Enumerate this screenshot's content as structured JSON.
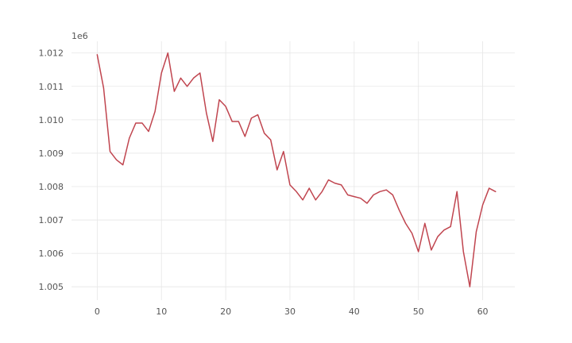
{
  "chart_data": {
    "type": "line",
    "title": "",
    "xlabel": "",
    "ylabel": "",
    "y_offset_label": "1e6",
    "grid": true,
    "xlim": [
      -4,
      65
    ],
    "ylim": [
      1004.6,
      1012.35
    ],
    "x_ticks": [
      0,
      10,
      20,
      30,
      40,
      50,
      60
    ],
    "x_tick_labels": [
      "0",
      "10",
      "20",
      "30",
      "40",
      "50",
      "60"
    ],
    "y_ticks": [
      1005,
      1006,
      1007,
      1008,
      1009,
      1010,
      1011,
      1012
    ],
    "y_tick_labels": [
      "1.005",
      "1.006",
      "1.007",
      "1.008",
      "1.009",
      "1.010",
      "1.011",
      "1.012"
    ],
    "series": [
      {
        "color": "#c0454f",
        "x": [
          0,
          1,
          2,
          3,
          4,
          5,
          6,
          7,
          8,
          9,
          10,
          11,
          12,
          13,
          14,
          15,
          16,
          17,
          18,
          19,
          20,
          21,
          22,
          23,
          24,
          25,
          26,
          27,
          28,
          29,
          30,
          31,
          32,
          33,
          34,
          35,
          36,
          37,
          38,
          39,
          40,
          41,
          42,
          43,
          44,
          45,
          46,
          47,
          48,
          49,
          50,
          51,
          52,
          53,
          54,
          55,
          56,
          57,
          58,
          59,
          60,
          61,
          62
        ],
        "values": [
          1011.95,
          1010.95,
          1009.05,
          1008.8,
          1008.65,
          1009.45,
          1009.9,
          1009.9,
          1009.65,
          1010.25,
          1011.4,
          1012.0,
          1010.85,
          1011.25,
          1011.0,
          1011.25,
          1011.4,
          1010.2,
          1009.35,
          1010.6,
          1010.4,
          1009.95,
          1009.95,
          1009.5,
          1010.05,
          1010.15,
          1009.6,
          1009.4,
          1008.5,
          1009.05,
          1008.05,
          1007.85,
          1007.6,
          1007.95,
          1007.6,
          1007.85,
          1008.2,
          1008.1,
          1008.05,
          1007.75,
          1007.7,
          1007.65,
          1007.5,
          1007.75,
          1007.85,
          1007.9,
          1007.75,
          1007.3,
          1006.9,
          1006.6,
          1006.05,
          1006.9,
          1006.1,
          1006.5,
          1006.7,
          1006.8,
          1007.85,
          1006.05,
          1005.0,
          1006.65,
          1007.45,
          1007.95,
          1007.85
        ]
      }
    ]
  }
}
